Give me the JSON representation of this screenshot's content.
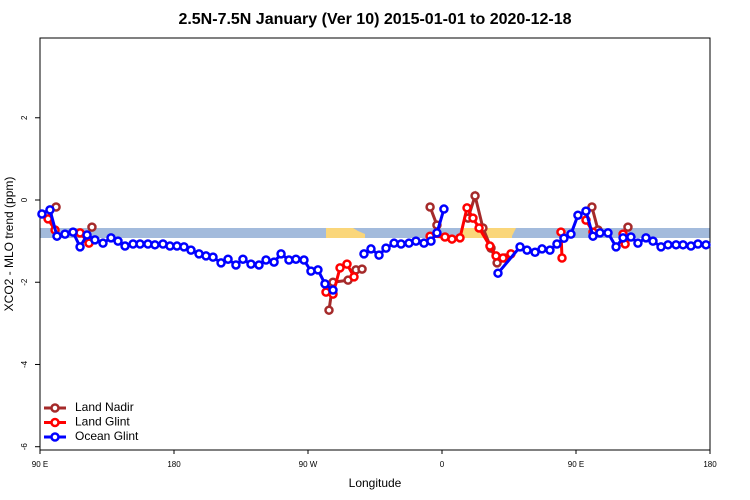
{
  "chart_data": {
    "type": "line",
    "title": "2.5N-7.5N January (Ver 10)   2015-01-01 to 2020-12-18",
    "x_label": "Longitude",
    "y_label": "XCO2 - MLO trend (ppm)",
    "xlim": [
      90,
      540
    ],
    "ylim": [
      -6.08,
      3.94
    ],
    "xticks": [
      {
        "value": 90,
        "label": "90 E"
      },
      180,
      {
        "value": 270,
        "label": "90 W"
      },
      {
        "value": 360,
        "label": "0"
      },
      {
        "value": 450,
        "label": "90 E"
      },
      {
        "value": 540,
        "label": "180"
      }
    ],
    "yticks": [
      2,
      0,
      -2,
      -4,
      -6
    ],
    "legend": "bottom-left",
    "series": [
      {
        "name": "Land Nadir",
        "color": "#a52a2a",
        "x": [
          95.4,
          100.8,
          null,
          124.9,
          null,
          284.1,
          286.8,
          296.9,
          302.2,
          306.3,
          null,
          352.0,
          356.6,
          null,
          377.5,
          382.2,
          387.5,
          392.9,
          397.0,
          402.3,
          null,
          460.7,
          464.8,
          null,
          484.9
        ],
        "values": [
          -0.34,
          -0.17,
          null,
          -0.66,
          null,
          -2.68,
          -2.0,
          -1.95,
          -1.7,
          -1.68,
          null,
          -0.17,
          -0.61,
          null,
          -0.44,
          0.1,
          -0.68,
          -1.17,
          -1.53,
          -1.41,
          null,
          -0.17,
          -0.73,
          null,
          -0.66
        ]
      },
      {
        "name": "Land Glint",
        "color": "#ff0000",
        "x": [
          95.4,
          100.1,
          null,
          116.9,
          122.9,
          null,
          282.1,
          286.8,
          291.5,
          296.2,
          300.9,
          null,
          352.0,
          362.0,
          366.7,
          372.1,
          376.8,
          380.8,
          384.9,
          392.2,
          396.3,
          401.0,
          406.3,
          null,
          439.9,
          440.6,
          null,
          456.7,
          461.4,
          null,
          481.6,
          483.0
        ],
        "values": [
          -0.46,
          -0.73,
          null,
          -0.8,
          -1.05,
          null,
          -2.24,
          -2.29,
          -1.65,
          -1.56,
          -1.87,
          null,
          -0.88,
          -0.9,
          -0.95,
          -0.92,
          -0.19,
          -0.44,
          -0.68,
          -1.12,
          -1.36,
          -1.41,
          -1.31,
          null,
          -0.78,
          -1.41,
          null,
          -0.49,
          -0.78,
          null,
          -0.83,
          -1.07
        ]
      },
      {
        "name": "Ocean Glint",
        "color": "#0000ff",
        "x": [
          91.3,
          96.7,
          101.4,
          106.8,
          112.2,
          116.9,
          121.6,
          126.9,
          132.3,
          137.7,
          142.4,
          147.1,
          152.5,
          157.2,
          162.5,
          167.2,
          172.6,
          177.3,
          182.0,
          186.7,
          191.4,
          196.8,
          201.5,
          206.2,
          211.6,
          216.3,
          221.6,
          226.3,
          231.7,
          237.1,
          241.8,
          247.2,
          251.9,
          257.2,
          261.9,
          267.3,
          272.0,
          276.7,
          281.4,
          286.8,
          null,
          307.6,
          312.3,
          317.7,
          322.4,
          327.8,
          332.5,
          337.8,
          342.5,
          347.9,
          352.6,
          356.6,
          361.3,
          null,
          397.6,
          412.4,
          417.1,
          422.5,
          427.2,
          432.5,
          437.2,
          441.9,
          446.6,
          451.3,
          456.7,
          461.4,
          466.1,
          471.5,
          476.9,
          481.6,
          486.9,
          491.6,
          497.0,
          501.7,
          507.1,
          511.8,
          517.2,
          521.9,
          527.2,
          531.9,
          537.3
        ],
        "values": [
          -0.34,
          -0.24,
          -0.88,
          -0.83,
          -0.78,
          -1.14,
          -0.85,
          -0.97,
          -1.05,
          -0.92,
          -1.0,
          -1.12,
          -1.07,
          -1.07,
          -1.07,
          -1.09,
          -1.07,
          -1.12,
          -1.12,
          -1.14,
          -1.22,
          -1.31,
          -1.36,
          -1.39,
          -1.53,
          -1.44,
          -1.58,
          -1.44,
          -1.56,
          -1.58,
          -1.46,
          -1.51,
          -1.31,
          -1.46,
          -1.44,
          -1.46,
          -1.73,
          -1.7,
          -2.04,
          -2.19,
          null,
          -1.31,
          -1.19,
          -1.34,
          -1.17,
          -1.05,
          -1.07,
          -1.05,
          -1.0,
          -1.05,
          -1.0,
          -0.8,
          -0.22,
          null,
          -1.78,
          -1.14,
          -1.22,
          -1.27,
          -1.19,
          -1.22,
          -1.07,
          -0.93,
          -0.83,
          -0.37,
          -0.27,
          -0.88,
          -0.8,
          -0.8,
          -1.14,
          -0.92,
          -0.9,
          -1.05,
          -0.92,
          -1.0,
          -1.14,
          -1.09,
          -1.09,
          -1.09,
          -1.12,
          -1.07,
          -1.09
        ]
      }
    ]
  }
}
